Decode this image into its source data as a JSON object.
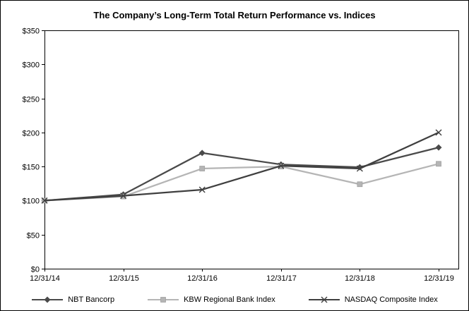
{
  "chart_data": {
    "type": "line",
    "title": "The Company’s Long-Term Total Return Performance vs. Indices",
    "categories": [
      "12/31/14",
      "12/31/15",
      "12/31/16",
      "12/31/17",
      "12/31/18",
      "12/31/19"
    ],
    "series": [
      {
        "name": "NBT Bancorp",
        "marker": "diamond",
        "color": "#4a4a4a",
        "values": [
          100,
          109,
          170,
          153,
          149,
          178
        ]
      },
      {
        "name": "KBW Regional Bank Index",
        "marker": "square",
        "color": "#b5b5b5",
        "values": [
          100,
          106,
          147,
          150,
          124,
          154
        ]
      },
      {
        "name": "NASDAQ Composite Index",
        "marker": "x",
        "color": "#3f3f3f",
        "values": [
          100,
          107,
          116,
          151,
          147,
          200
        ]
      }
    ],
    "ylim": [
      0,
      350
    ],
    "ytick_step": 50,
    "ytick_labels": [
      "$0",
      "$50",
      "$100",
      "$150",
      "$200",
      "$250",
      "$300",
      "$350"
    ],
    "grid": false,
    "legend_position": "bottom",
    "axis_color": "#000000",
    "background": "#ffffff"
  }
}
